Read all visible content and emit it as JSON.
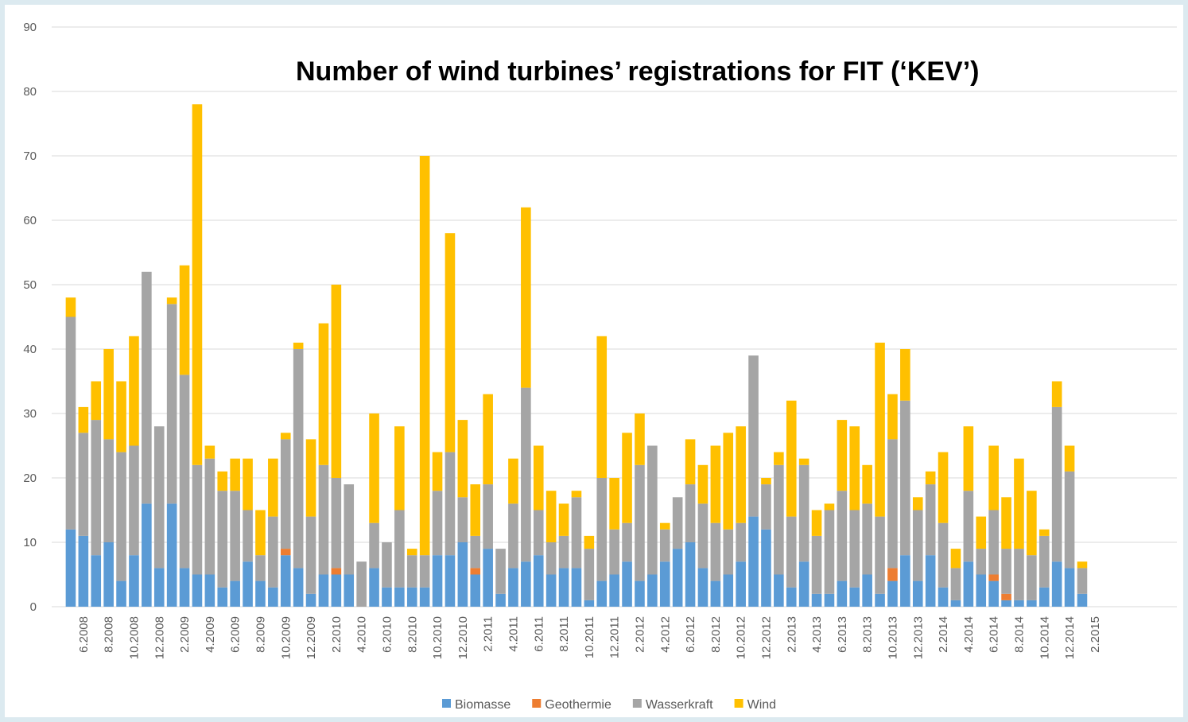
{
  "chart_data": {
    "type": "bar",
    "stacked": true,
    "title": "Number of wind turbines’ registrations for FIT (‘KEV’)",
    "categories": [
      null,
      "6.2008",
      null,
      "8.2008",
      null,
      "10.2008",
      null,
      "12.2008",
      null,
      "2.2009",
      null,
      "4.2009",
      null,
      "6.2009",
      null,
      "8.2009",
      null,
      "10.2009",
      null,
      "12.2009",
      null,
      "2.2010",
      null,
      "4.2010",
      null,
      "6.2010",
      null,
      "8.2010",
      null,
      "10.2010",
      null,
      "12.2010",
      null,
      "2.2011",
      null,
      "4.2011",
      null,
      "6.2011",
      null,
      "8.2011",
      null,
      "10.2011",
      null,
      "12.2011",
      null,
      "2.2012",
      null,
      "4.2012",
      null,
      "6.2012",
      null,
      "8.2012",
      null,
      "10.2012",
      null,
      "12.2012",
      null,
      "2.2013",
      null,
      "4.2013",
      null,
      "6.2013",
      null,
      "8.2013",
      null,
      "10.2013",
      null,
      "12.2013",
      null,
      "2.2014",
      null,
      "4.2014",
      null,
      "6.2014",
      null,
      "8.2014",
      null,
      "10.2014",
      null,
      "12.2014",
      null,
      "2.2015"
    ],
    "series": [
      {
        "name": "Biomasse",
        "color": "#5b9bd5",
        "values": [
          12,
          11,
          8,
          10,
          4,
          8,
          16,
          6,
          16,
          6,
          5,
          5,
          3,
          4,
          7,
          4,
          3,
          8,
          6,
          2,
          5,
          5,
          5,
          0,
          6,
          3,
          3,
          3,
          3,
          8,
          8,
          10,
          5,
          9,
          2,
          6,
          7,
          8,
          5,
          6,
          6,
          1,
          4,
          5,
          7,
          4,
          5,
          7,
          9,
          10,
          6,
          4,
          5,
          7,
          14,
          12,
          5,
          3,
          7,
          2,
          2,
          4,
          3,
          5,
          2,
          4,
          8,
          4,
          8,
          3,
          1,
          7,
          5,
          4,
          1,
          1,
          1,
          3,
          7,
          6,
          2,
          0
        ]
      },
      {
        "name": "Geothermie",
        "color": "#ed7d31",
        "values": [
          0,
          0,
          0,
          0,
          0,
          0,
          0,
          0,
          0,
          0,
          0,
          0,
          0,
          0,
          0,
          0,
          0,
          1,
          0,
          0,
          0,
          1,
          0,
          0,
          0,
          0,
          0,
          0,
          0,
          0,
          0,
          0,
          1,
          0,
          0,
          0,
          0,
          0,
          0,
          0,
          0,
          0,
          0,
          0,
          0,
          0,
          0,
          0,
          0,
          0,
          0,
          0,
          0,
          0,
          0,
          0,
          0,
          0,
          0,
          0,
          0,
          0,
          0,
          0,
          0,
          2,
          0,
          0,
          0,
          0,
          0,
          0,
          0,
          1,
          1,
          0,
          0,
          0,
          0,
          0,
          0,
          0
        ]
      },
      {
        "name": "Wasserkraft",
        "color": "#a5a5a5",
        "values": [
          33,
          16,
          21,
          16,
          20,
          17,
          36,
          22,
          31,
          30,
          17,
          18,
          15,
          14,
          8,
          4,
          11,
          17,
          34,
          12,
          17,
          14,
          14,
          7,
          7,
          7,
          12,
          5,
          5,
          10,
          16,
          7,
          5,
          10,
          7,
          10,
          27,
          7,
          5,
          5,
          11,
          8,
          16,
          7,
          6,
          18,
          20,
          5,
          8,
          9,
          10,
          9,
          7,
          6,
          25,
          7,
          17,
          11,
          15,
          9,
          13,
          14,
          12,
          11,
          12,
          20,
          24,
          11,
          11,
          10,
          5,
          11,
          4,
          10,
          7,
          8,
          7,
          8,
          24,
          15,
          4,
          0
        ]
      },
      {
        "name": "Wind",
        "color": "#ffc000",
        "values": [
          3,
          4,
          6,
          14,
          11,
          17,
          0,
          0,
          1,
          17,
          56,
          2,
          3,
          5,
          8,
          7,
          9,
          1,
          1,
          12,
          22,
          30,
          0,
          0,
          17,
          0,
          13,
          1,
          62,
          6,
          34,
          12,
          8,
          14,
          0,
          7,
          28,
          10,
          8,
          5,
          1,
          2,
          22,
          8,
          14,
          8,
          0,
          1,
          0,
          7,
          6,
          12,
          15,
          15,
          0,
          1,
          2,
          18,
          1,
          4,
          1,
          11,
          13,
          6,
          27,
          7,
          8,
          2,
          2,
          11,
          3,
          10,
          5,
          10,
          8,
          14,
          10,
          1,
          4,
          4,
          1,
          0
        ]
      }
    ],
    "ylim": [
      0,
      90
    ],
    "yticks": [
      0,
      10,
      20,
      30,
      40,
      50,
      60,
      70,
      80,
      90
    ],
    "grid": true
  }
}
